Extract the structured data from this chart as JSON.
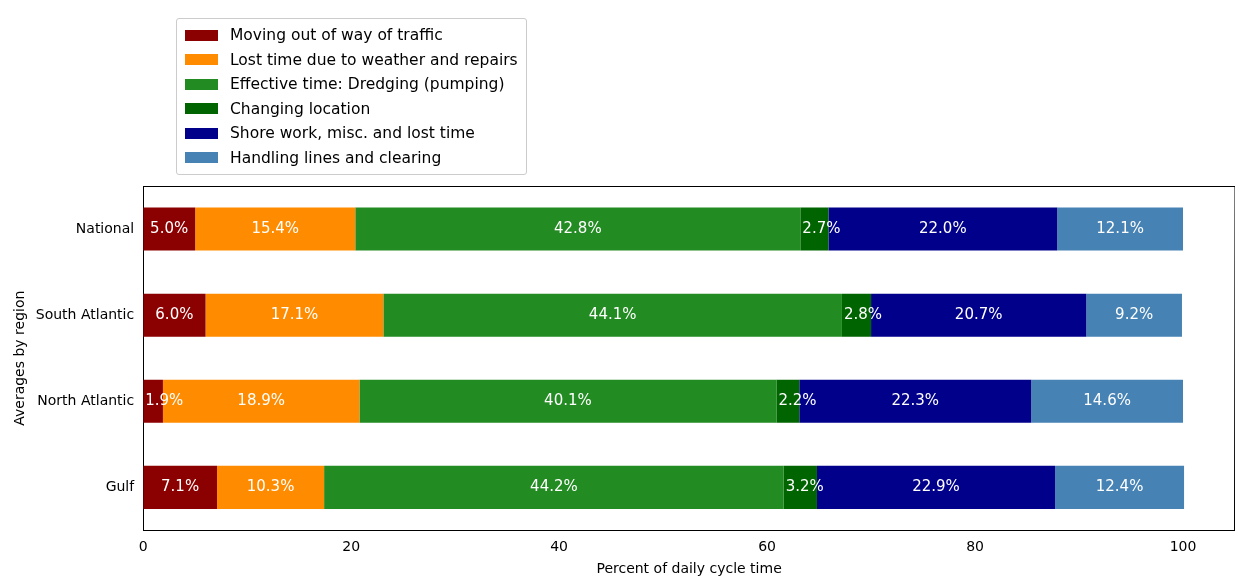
{
  "chart_data": {
    "type": "bar",
    "orientation": "horizontal",
    "stacked": true,
    "xlabel": "Percent of daily cycle time",
    "ylabel": "Averages by region",
    "categories": [
      "National",
      "South Atlantic",
      "North Atlantic",
      "Gulf"
    ],
    "series": [
      {
        "name": "Moving out of way of traffic",
        "color": "#8b0000",
        "values": [
          5.0,
          6.0,
          1.9,
          7.1
        ],
        "value_labels": [
          "5.0%",
          "6.0%",
          "1.9%",
          "7.1%"
        ]
      },
      {
        "name": "Lost time due to weather and repairs",
        "color": "#ff8c00",
        "values": [
          15.4,
          17.1,
          18.9,
          10.3
        ],
        "value_labels": [
          "15.4%",
          "17.1%",
          "18.9%",
          "10.3%"
        ]
      },
      {
        "name": "Effective time: Dredging (pumping)",
        "color": "#228b22",
        "values": [
          42.8,
          44.1,
          40.1,
          44.2
        ],
        "value_labels": [
          "42.8%",
          "44.1%",
          "40.1%",
          "44.2%"
        ]
      },
      {
        "name": "Changing location",
        "color": "#006400",
        "values": [
          2.7,
          2.8,
          2.2,
          3.2
        ],
        "value_labels": [
          "2.7%",
          "2.8%",
          "2.2%",
          "3.2%"
        ]
      },
      {
        "name": "Shore work, misc. and lost time",
        "color": "#00008b",
        "values": [
          22.0,
          20.7,
          22.3,
          22.9
        ],
        "value_labels": [
          "22.0%",
          "20.7%",
          "22.3%",
          "22.9%"
        ]
      },
      {
        "name": "Handling lines and clearing",
        "color": "#4682b4",
        "values": [
          12.1,
          9.2,
          14.6,
          12.4
        ],
        "value_labels": [
          "12.1%",
          "9.2%",
          "14.6%",
          "12.4%"
        ]
      }
    ],
    "xlim": [
      0,
      105
    ],
    "xticks": [
      0,
      20,
      40,
      60,
      80,
      100
    ],
    "grid": false,
    "legend": "top left"
  }
}
